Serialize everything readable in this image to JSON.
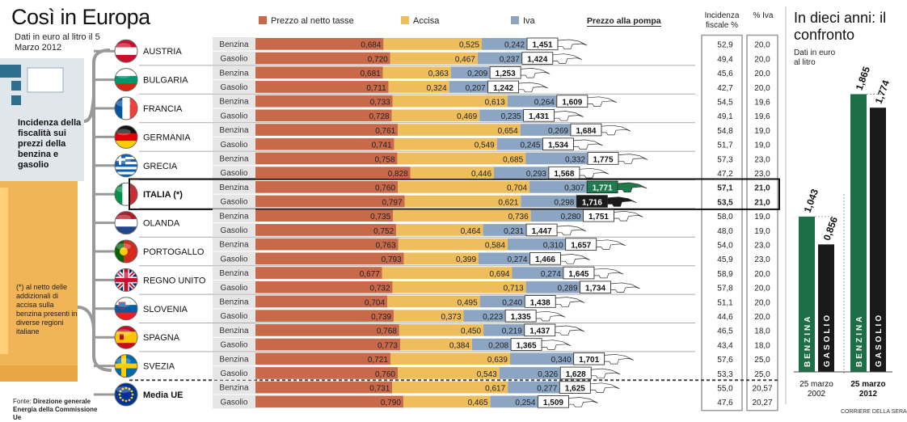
{
  "title": "Così in Europa",
  "subtitle": "Dati in euro al litro il 5 Marzo 2012",
  "sidebar_text": "Incidenza della fiscalità sui prezzi della benzina e gasolio",
  "note": "(*) al netto delle addizionali di accisa sulla benzina presenti in diverse regioni italiane",
  "source_label": "Fonte:",
  "source_text": "Direzione generale Energia della Commissione Ue",
  "credit": "CORRIERE DELLA SERA",
  "header_incidenza": "Incidenza fiscale %",
  "header_iva": "% Iva",
  "colors": {
    "netto": "#c8694a",
    "accisa": "#efbe5c",
    "iva": "#8ca5c3",
    "pump": "#ffffff",
    "italy_benzina": "#1f7a4e",
    "italy_gasolio": "#1a1a1a",
    "green": "#1e6e47",
    "black": "#1a1a1a"
  },
  "chart_data": [
    {
      "type": "bar",
      "orientation": "horizontal",
      "stacked": true,
      "legend": [
        "Prezzo al netto tasse",
        "Accisa",
        "Iva",
        "Prezzo alla pompa"
      ],
      "fuel_labels": [
        "Benzina",
        "Gasolio"
      ],
      "xlim": [
        0,
        2.1
      ],
      "countries": [
        {
          "name": "AUSTRIA",
          "flag": "austria-flag",
          "rows": [
            {
              "fuel": "Benzina",
              "netto": 0.684,
              "accisa": 0.525,
              "iva": 0.242,
              "total": 1.451,
              "incidenza": 52.9,
              "iva_pct": 20.0,
              "labels": [
                "0,684",
                "0,525",
                "0,242",
                "1,451",
                "52,9",
                "20,0"
              ]
            },
            {
              "fuel": "Gasolio",
              "netto": 0.72,
              "accisa": 0.467,
              "iva": 0.237,
              "total": 1.424,
              "incidenza": 49.4,
              "iva_pct": 20.0,
              "labels": [
                "0,720",
                "0,467",
                "0,237",
                "1,424",
                "49,4",
                "20,0"
              ]
            }
          ]
        },
        {
          "name": "BULGARIA",
          "flag": "bulgaria-flag",
          "rows": [
            {
              "fuel": "Benzina",
              "netto": 0.681,
              "accisa": 0.363,
              "iva": 0.209,
              "total": 1.253,
              "incidenza": 45.6,
              "iva_pct": 20.0,
              "labels": [
                "0,681",
                "0,363",
                "0,209",
                "1,253",
                "45,6",
                "20,0"
              ]
            },
            {
              "fuel": "Gasolio",
              "netto": 0.711,
              "accisa": 0.324,
              "iva": 0.207,
              "total": 1.242,
              "incidenza": 42.7,
              "iva_pct": 20.0,
              "labels": [
                "0,711",
                "0,324",
                "0,207",
                "1,242",
                "42,7",
                "20,0"
              ]
            }
          ]
        },
        {
          "name": "FRANCIA",
          "flag": "france-flag",
          "rows": [
            {
              "fuel": "Benzina",
              "netto": 0.733,
              "accisa": 0.613,
              "iva": 0.264,
              "total": 1.609,
              "incidenza": 54.5,
              "iva_pct": 19.6,
              "labels": [
                "0,733",
                "0,613",
                "0,264",
                "1,609",
                "54,5",
                "19,6"
              ]
            },
            {
              "fuel": "Gasolio",
              "netto": 0.728,
              "accisa": 0.469,
              "iva": 0.235,
              "total": 1.431,
              "incidenza": 49.1,
              "iva_pct": 19.6,
              "labels": [
                "0,728",
                "0,469",
                "0,235",
                "1,431",
                "49,1",
                "19,6"
              ]
            }
          ]
        },
        {
          "name": "GERMANIA",
          "flag": "germany-flag",
          "rows": [
            {
              "fuel": "Benzina",
              "netto": 0.761,
              "accisa": 0.654,
              "iva": 0.269,
              "total": 1.684,
              "incidenza": 54.8,
              "iva_pct": 19.0,
              "labels": [
                "0,761",
                "0,654",
                "0,269",
                "1,684",
                "54,8",
                "19,0"
              ]
            },
            {
              "fuel": "Gasolio",
              "netto": 0.741,
              "accisa": 0.549,
              "iva": 0.245,
              "total": 1.534,
              "incidenza": 51.7,
              "iva_pct": 19.0,
              "labels": [
                "0,741",
                "0,549",
                "0,245",
                "1,534",
                "51,7",
                "19,0"
              ]
            }
          ]
        },
        {
          "name": "GRECIA",
          "flag": "greece-flag",
          "rows": [
            {
              "fuel": "Benzina",
              "netto": 0.758,
              "accisa": 0.685,
              "iva": 0.332,
              "total": 1.775,
              "incidenza": 57.3,
              "iva_pct": 23.0,
              "labels": [
                "0,758",
                "0,685",
                "0,332",
                "1,775",
                "57,3",
                "23,0"
              ]
            },
            {
              "fuel": "Gasolio",
              "netto": 0.828,
              "accisa": 0.446,
              "iva": 0.293,
              "total": 1.568,
              "incidenza": 47.2,
              "iva_pct": 23.0,
              "labels": [
                "0,828",
                "0,446",
                "0,293",
                "1,568",
                "47,2",
                "23,0"
              ]
            }
          ]
        },
        {
          "name": "ITALIA (*)",
          "flag": "italy-flag",
          "highlight": true,
          "rows": [
            {
              "fuel": "Benzina",
              "netto": 0.76,
              "accisa": 0.704,
              "iva": 0.307,
              "total": 1.771,
              "incidenza": 57.1,
              "iva_pct": 21.0,
              "labels": [
                "0,760",
                "0,704",
                "0,307",
                "1,771",
                "57,1",
                "21,0"
              ]
            },
            {
              "fuel": "Gasolio",
              "netto": 0.797,
              "accisa": 0.621,
              "iva": 0.298,
              "total": 1.716,
              "incidenza": 53.5,
              "iva_pct": 21.0,
              "labels": [
                "0,797",
                "0,621",
                "0,298",
                "1,716",
                "53,5",
                "21,0"
              ]
            }
          ]
        },
        {
          "name": "OLANDA",
          "flag": "netherlands-flag",
          "rows": [
            {
              "fuel": "Benzina",
              "netto": 0.735,
              "accisa": 0.736,
              "iva": 0.28,
              "total": 1.751,
              "incidenza": 58.0,
              "iva_pct": 19.0,
              "labels": [
                "0,735",
                "0,736",
                "0,280",
                "1,751",
                "58,0",
                "19,0"
              ]
            },
            {
              "fuel": "Gasolio",
              "netto": 0.752,
              "accisa": 0.464,
              "iva": 0.231,
              "total": 1.447,
              "incidenza": 48.0,
              "iva_pct": 19.0,
              "labels": [
                "0,752",
                "0,464",
                "0,231",
                "1,447",
                "48,0",
                "19,0"
              ]
            }
          ]
        },
        {
          "name": "PORTOGALLO",
          "flag": "portugal-flag",
          "rows": [
            {
              "fuel": "Benzina",
              "netto": 0.763,
              "accisa": 0.584,
              "iva": 0.31,
              "total": 1.657,
              "incidenza": 54.0,
              "iva_pct": 23.0,
              "labels": [
                "0,763",
                "0,584",
                "0,310",
                "1,657",
                "54,0",
                "23,0"
              ]
            },
            {
              "fuel": "Gasolio",
              "netto": 0.793,
              "accisa": 0.399,
              "iva": 0.274,
              "total": 1.466,
              "incidenza": 45.9,
              "iva_pct": 23.0,
              "labels": [
                "0,793",
                "0,399",
                "0,274",
                "1,466",
                "45,9",
                "23,0"
              ]
            }
          ]
        },
        {
          "name": "REGNO UNITO",
          "flag": "uk-flag",
          "rows": [
            {
              "fuel": "Benzina",
              "netto": 0.677,
              "accisa": 0.694,
              "iva": 0.274,
              "total": 1.645,
              "incidenza": 58.9,
              "iva_pct": 20.0,
              "labels": [
                "0,677",
                "0,694",
                "0,274",
                "1,645",
                "58,9",
                "20,0"
              ]
            },
            {
              "fuel": "Gasolio",
              "netto": 0.732,
              "accisa": 0.713,
              "iva": 0.289,
              "total": 1.734,
              "incidenza": 57.8,
              "iva_pct": 20.0,
              "labels": [
                "0,732",
                "0,713",
                "0,289",
                "1,734",
                "57,8",
                "20,0"
              ]
            }
          ]
        },
        {
          "name": "SLOVENIA",
          "flag": "slovenia-flag",
          "rows": [
            {
              "fuel": "Benzina",
              "netto": 0.704,
              "accisa": 0.495,
              "iva": 0.24,
              "total": 1.438,
              "incidenza": 51.1,
              "iva_pct": 20.0,
              "labels": [
                "0,704",
                "0,495",
                "0,240",
                "1,438",
                "51,1",
                "20,0"
              ]
            },
            {
              "fuel": "Gasolio",
              "netto": 0.739,
              "accisa": 0.373,
              "iva": 0.223,
              "total": 1.335,
              "incidenza": 44.6,
              "iva_pct": 20.0,
              "labels": [
                "0,739",
                "0,373",
                "0,223",
                "1,335",
                "44,6",
                "20,0"
              ]
            }
          ]
        },
        {
          "name": "SPAGNA",
          "flag": "spain-flag",
          "rows": [
            {
              "fuel": "Benzina",
              "netto": 0.768,
              "accisa": 0.45,
              "iva": 0.219,
              "total": 1.437,
              "incidenza": 46.5,
              "iva_pct": 18.0,
              "labels": [
                "0,768",
                "0,450",
                "0,219",
                "1,437",
                "46,5",
                "18,0"
              ]
            },
            {
              "fuel": "Gasolio",
              "netto": 0.773,
              "accisa": 0.384,
              "iva": 0.208,
              "total": 1.365,
              "incidenza": 43.4,
              "iva_pct": 18.0,
              "labels": [
                "0,773",
                "0,384",
                "0,208",
                "1,365",
                "43,4",
                "18,0"
              ]
            }
          ]
        },
        {
          "name": "SVEZIA",
          "flag": "sweden-flag",
          "rows": [
            {
              "fuel": "Benzina",
              "netto": 0.721,
              "accisa": 0.639,
              "iva": 0.34,
              "total": 1.701,
              "incidenza": 57.6,
              "iva_pct": 25.0,
              "labels": [
                "0,721",
                "0,639",
                "0,340",
                "1,701",
                "57,6",
                "25,0"
              ]
            },
            {
              "fuel": "Gasolio",
              "netto": 0.76,
              "accisa": 0.543,
              "iva": 0.326,
              "total": 1.628,
              "incidenza": 53.3,
              "iva_pct": 25.0,
              "labels": [
                "0,760",
                "0,543",
                "0,326",
                "1,628",
                "53,3",
                "25,0"
              ]
            }
          ]
        },
        {
          "name": "Media UE",
          "flag": "eu-flag",
          "average": true,
          "rows": [
            {
              "fuel": "Benzina",
              "netto": 0.731,
              "accisa": 0.617,
              "iva": 0.277,
              "total": 1.625,
              "incidenza": 55.0,
              "iva_pct": 20.57,
              "labels": [
                "0,731",
                "0,617",
                "0,277",
                "1,625",
                "55,0",
                "20,57"
              ]
            },
            {
              "fuel": "Gasolio",
              "netto": 0.79,
              "accisa": 0.465,
              "iva": 0.254,
              "total": 1.509,
              "incidenza": 47.6,
              "iva_pct": 20.27,
              "labels": [
                "0,790",
                "0,465",
                "0,254",
                "1,509",
                "47,6",
                "20,27"
              ]
            }
          ]
        }
      ]
    },
    {
      "type": "bar",
      "title": "In dieci anni: il confronto",
      "subtitle": "Dati in euro al litro",
      "ylim": [
        0,
        2.0
      ],
      "groups": [
        {
          "date": "25 marzo 2002",
          "bold": false,
          "bars": [
            {
              "name": "BENZINA",
              "value": 1.043,
              "label": "1,043"
            },
            {
              "name": "GASOLIO",
              "value": 0.856,
              "label": "0,856"
            }
          ]
        },
        {
          "date": "25 marzo 2012",
          "bold": true,
          "bars": [
            {
              "name": "BENZINA",
              "value": 1.865,
              "label": "1,865"
            },
            {
              "name": "GASOLIO",
              "value": 1.774,
              "label": "1,774"
            }
          ]
        }
      ]
    }
  ]
}
